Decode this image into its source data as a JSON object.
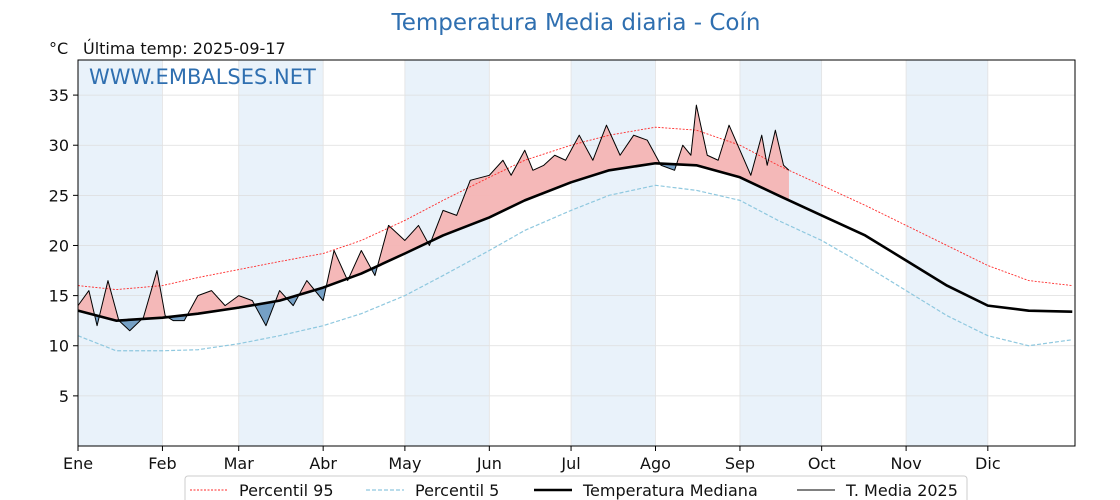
{
  "title": "Temperatura Media diaria - Coín",
  "unit": "°C",
  "last_temp": "Última temp: 2025-09-17",
  "watermark": "WWW.EMBALSES.NET",
  "colors": {
    "title": "#2f6fb0",
    "p95": "#ff2a2a",
    "p5": "#8fc8df",
    "median": "#000000",
    "current": "#000000",
    "above_fill": "#f4b4b4",
    "above_fill_strong": "#f06060",
    "below_fill": "#6f9bc2",
    "band": "#e9f2fa"
  },
  "legend": [
    {
      "key": "p95",
      "label": "Percentil 95",
      "style": "dotted-red"
    },
    {
      "key": "p5",
      "label": "Percentil 5",
      "style": "dashed-lightblue"
    },
    {
      "key": "median",
      "label": "Temperatura Mediana",
      "style": "thick-black"
    },
    {
      "key": "current",
      "label": "T. Media 2025",
      "style": "thin-black"
    }
  ],
  "chart_data": {
    "type": "line",
    "title": "Temperatura Media diaria - Coín",
    "xlabel": "",
    "ylabel": "°C",
    "x_unit": "day of year",
    "xlim": [
      1,
      366
    ],
    "ylim": [
      0,
      38.5
    ],
    "yticks": [
      5,
      10,
      15,
      20,
      25,
      30,
      35
    ],
    "months": [
      "Ene",
      "Feb",
      "Mar",
      "Abr",
      "May",
      "Jun",
      "Jul",
      "Ago",
      "Sep",
      "Oct",
      "Nov",
      "Dic"
    ],
    "month_start_days": [
      1,
      32,
      60,
      91,
      121,
      152,
      182,
      213,
      244,
      274,
      305,
      335
    ],
    "shaded_months": [
      "Ene",
      "Mar",
      "May",
      "Jul",
      "Sep",
      "Nov"
    ],
    "grid": true,
    "legend_position": "bottom",
    "series": [
      {
        "name": "Percentil 95",
        "x": [
          1,
          15,
          32,
          45,
          60,
          75,
          91,
          105,
          121,
          135,
          152,
          165,
          182,
          196,
          213,
          228,
          244,
          258,
          274,
          290,
          305,
          320,
          335,
          350,
          366
        ],
        "y": [
          16.0,
          15.6,
          16.0,
          16.8,
          17.6,
          18.4,
          19.2,
          20.5,
          22.5,
          24.5,
          26.8,
          28.5,
          30.0,
          31.0,
          31.8,
          31.5,
          30.0,
          28.0,
          26.0,
          24.0,
          22.0,
          20.0,
          18.0,
          16.5,
          16.0
        ]
      },
      {
        "name": "Percentil 5",
        "x": [
          1,
          15,
          32,
          45,
          60,
          75,
          91,
          105,
          121,
          135,
          152,
          165,
          182,
          196,
          213,
          228,
          244,
          258,
          274,
          290,
          305,
          320,
          335,
          350,
          366
        ],
        "y": [
          11.0,
          9.5,
          9.5,
          9.6,
          10.2,
          11.0,
          12.0,
          13.2,
          15.0,
          17.0,
          19.5,
          21.5,
          23.5,
          25.0,
          26.0,
          25.5,
          24.5,
          22.5,
          20.5,
          18.0,
          15.5,
          13.0,
          11.0,
          10.0,
          10.6
        ]
      },
      {
        "name": "Temperatura Mediana",
        "x": [
          1,
          15,
          32,
          45,
          60,
          75,
          91,
          105,
          121,
          135,
          152,
          165,
          182,
          196,
          213,
          228,
          244,
          258,
          274,
          290,
          305,
          320,
          335,
          350,
          366
        ],
        "y": [
          13.5,
          12.5,
          12.8,
          13.2,
          13.8,
          14.5,
          15.8,
          17.2,
          19.2,
          21.0,
          22.8,
          24.5,
          26.3,
          27.5,
          28.2,
          28.0,
          26.8,
          25.0,
          23.0,
          21.0,
          18.5,
          16.0,
          14.0,
          13.5,
          13.4
        ]
      },
      {
        "name": "T. Media 2025",
        "x": [
          1,
          5,
          8,
          12,
          16,
          20,
          25,
          30,
          33,
          36,
          40,
          45,
          50,
          55,
          60,
          65,
          70,
          75,
          80,
          85,
          91,
          95,
          100,
          105,
          110,
          115,
          121,
          126,
          130,
          135,
          140,
          145,
          152,
          157,
          160,
          165,
          168,
          172,
          176,
          180,
          185,
          190,
          195,
          200,
          205,
          210,
          215,
          220,
          223,
          226,
          228,
          232,
          236,
          240,
          244,
          248,
          252,
          254,
          257,
          260,
          262
        ],
        "y": [
          14.0,
          15.5,
          12.0,
          16.5,
          12.5,
          11.5,
          12.8,
          17.5,
          13.0,
          12.5,
          12.5,
          15.0,
          15.5,
          14.0,
          15.0,
          14.5,
          12.0,
          15.5,
          14.0,
          16.5,
          14.5,
          19.5,
          16.5,
          19.5,
          17.0,
          22.0,
          20.5,
          22.0,
          20.0,
          23.5,
          23.0,
          26.5,
          27.0,
          28.5,
          27.0,
          29.5,
          27.5,
          28.0,
          29.0,
          28.5,
          31.0,
          28.5,
          32.0,
          29.0,
          31.0,
          30.5,
          28.0,
          27.5,
          30.0,
          29.0,
          34.0,
          29.0,
          28.5,
          32.0,
          29.5,
          27.0,
          31.0,
          28.0,
          31.5,
          28.0,
          27.5
        ]
      }
    ]
  }
}
